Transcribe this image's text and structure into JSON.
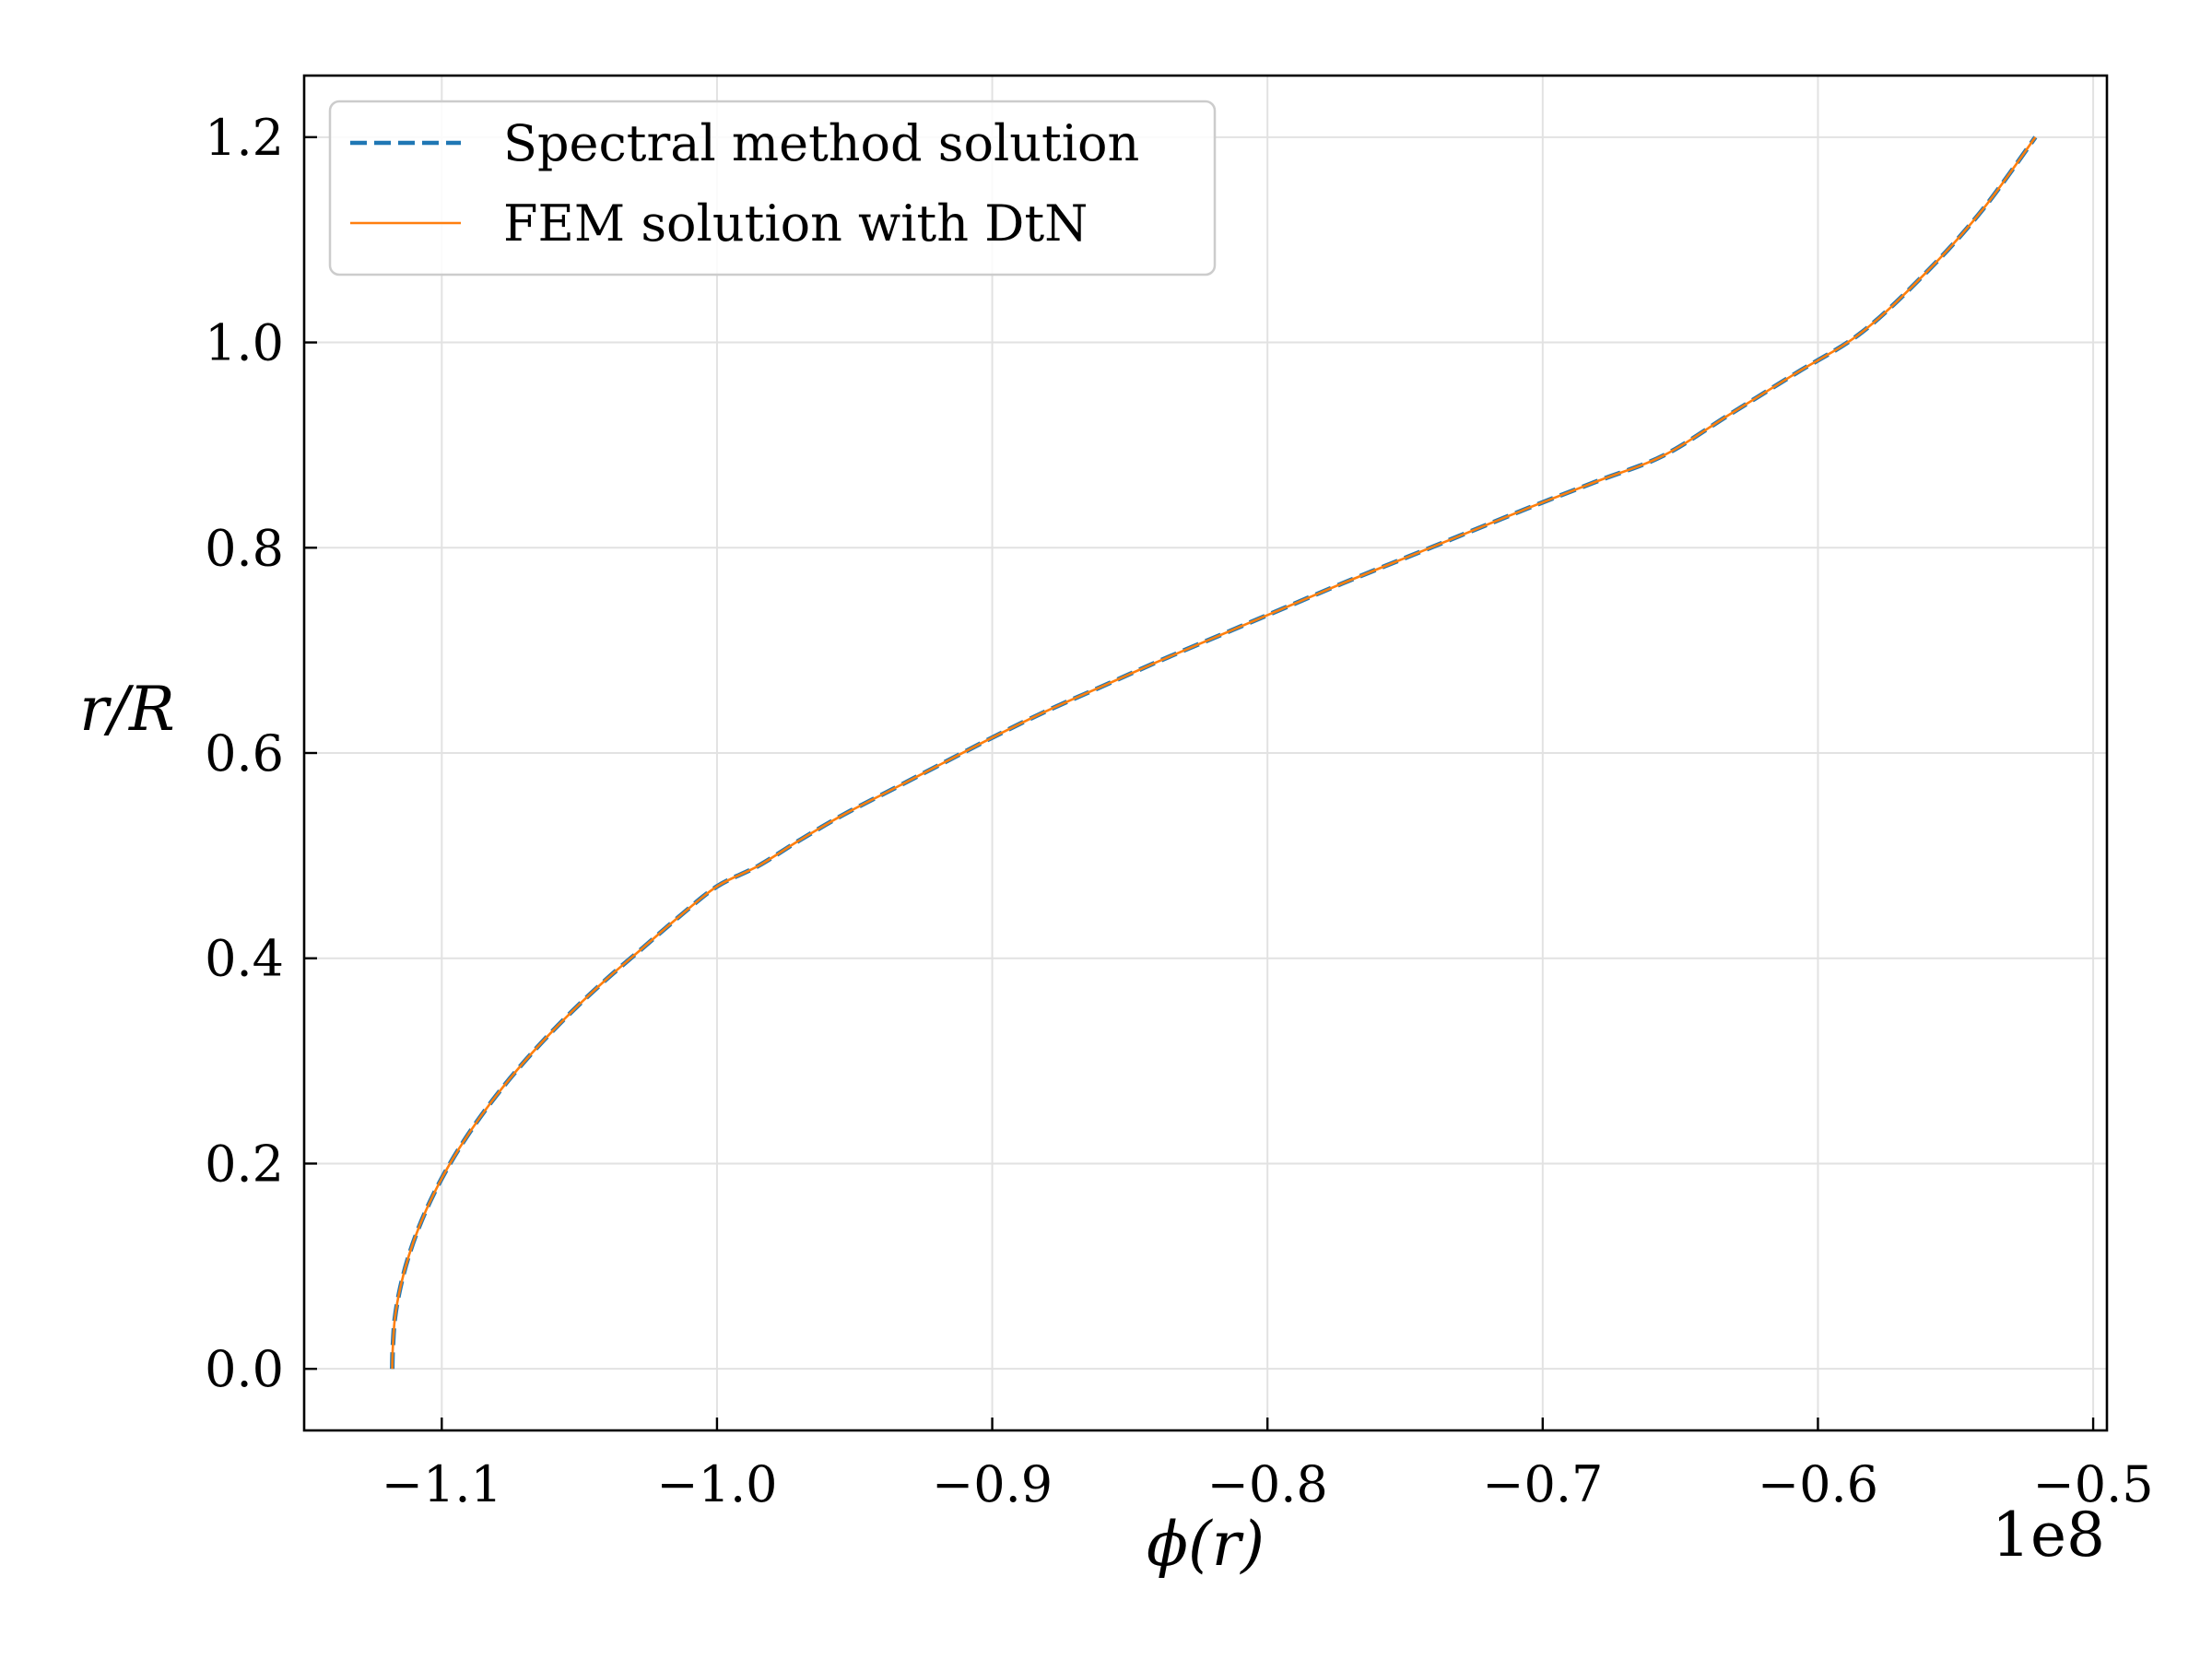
{
  "chart_data": {
    "type": "line",
    "xlabel": "ϕ(r)",
    "ylabel": "r/R",
    "x_offset_label": "1e8",
    "xlim": [
      -1.15,
      -0.495
    ],
    "ylim": [
      -0.06,
      1.26
    ],
    "x_tick_values": [
      -1.1,
      -1.0,
      -0.9,
      -0.8,
      -0.7,
      -0.6,
      -0.5
    ],
    "x_tick_labels": [
      "−1.1",
      "−1.0",
      "−0.9",
      "−0.8",
      "−0.7",
      "−0.6",
      "−0.5"
    ],
    "y_tick_values": [
      0.0,
      0.2,
      0.4,
      0.6,
      0.8,
      1.0,
      1.2
    ],
    "y_tick_labels": [
      "0.0",
      "0.2",
      "0.4",
      "0.6",
      "0.8",
      "1.0",
      "1.2"
    ],
    "grid": true,
    "legend_position": "top-left",
    "series": [
      {
        "name": "Spectral method solution",
        "color": "#1f77b4",
        "style": "dashed",
        "x": [
          -1.118,
          -1.1178,
          -1.117,
          -1.115,
          -1.112,
          -1.108,
          -1.103,
          -1.097,
          -1.09,
          -1.082,
          -1.073,
          -1.063,
          -1.052,
          -1.04,
          -1.027,
          -1.014,
          -1.0,
          -0.985,
          -0.97,
          -0.954,
          -0.936,
          -0.918,
          -0.9,
          -0.881,
          -0.86,
          -0.839,
          -0.817,
          -0.795,
          -0.773,
          -0.75,
          -0.727,
          -0.704,
          -0.68,
          -0.656,
          -0.632,
          -0.608,
          -0.584,
          -0.56,
          -0.54,
          -0.521
        ],
        "y": [
          0.0,
          0.02,
          0.05,
          0.08,
          0.11,
          0.14,
          0.17,
          0.2,
          0.23,
          0.26,
          0.29,
          0.32,
          0.35,
          0.38,
          0.41,
          0.44,
          0.47,
          0.49,
          0.515,
          0.54,
          0.565,
          0.59,
          0.615,
          0.64,
          0.665,
          0.69,
          0.715,
          0.74,
          0.765,
          0.79,
          0.815,
          0.84,
          0.865,
          0.89,
          0.93,
          0.97,
          1.01,
          1.07,
          1.13,
          1.2
        ]
      },
      {
        "name": "FEM solution with DtN",
        "color": "#ff7f0e",
        "style": "solid",
        "x": [
          -1.118,
          -1.1178,
          -1.117,
          -1.115,
          -1.112,
          -1.108,
          -1.103,
          -1.097,
          -1.09,
          -1.082,
          -1.073,
          -1.063,
          -1.052,
          -1.04,
          -1.027,
          -1.014,
          -1.0,
          -0.985,
          -0.97,
          -0.954,
          -0.936,
          -0.918,
          -0.9,
          -0.881,
          -0.86,
          -0.839,
          -0.817,
          -0.795,
          -0.773,
          -0.75,
          -0.727,
          -0.704,
          -0.68,
          -0.656,
          -0.632,
          -0.608,
          -0.584,
          -0.56,
          -0.54,
          -0.521
        ],
        "y": [
          0.0,
          0.02,
          0.05,
          0.08,
          0.11,
          0.14,
          0.17,
          0.2,
          0.23,
          0.26,
          0.29,
          0.32,
          0.35,
          0.38,
          0.41,
          0.44,
          0.47,
          0.49,
          0.515,
          0.54,
          0.565,
          0.59,
          0.615,
          0.64,
          0.665,
          0.69,
          0.715,
          0.74,
          0.765,
          0.79,
          0.815,
          0.84,
          0.865,
          0.89,
          0.93,
          0.97,
          1.01,
          1.07,
          1.13,
          1.2
        ]
      }
    ]
  }
}
